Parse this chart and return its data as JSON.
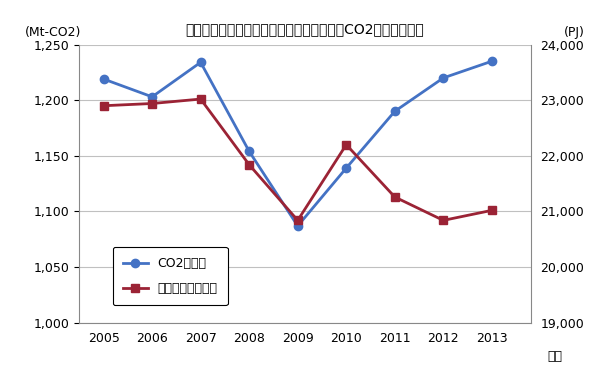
{
  "title": "一次エネルギー国内供給とエネルギー起源CO2排出量の推移",
  "years": [
    2005,
    2006,
    2007,
    2008,
    2009,
    2010,
    2011,
    2012,
    2013
  ],
  "co2": [
    1219,
    1203,
    1234,
    1154,
    1087,
    1139,
    1190,
    1220,
    1235
  ],
  "energy_left": [
    1195,
    1197,
    1201,
    1142,
    1092,
    1160,
    1113,
    1092,
    1101
  ],
  "co2_color": "#4472C4",
  "energy_color": "#9B2335",
  "ylabel_left": "(Mt-CO2)",
  "ylabel_right": "(PJ)",
  "xlabel": "年度",
  "legend_co2": "CO2排出量",
  "legend_energy": "一次エネ国内供給",
  "ylim_left": [
    1000,
    1250
  ],
  "ylim_right": [
    19000,
    24000
  ],
  "yticks_left": [
    1000,
    1050,
    1100,
    1150,
    1200,
    1250
  ],
  "yticks_right": [
    19000,
    20000,
    21000,
    22000,
    23000,
    24000
  ],
  "background_color": "#ffffff",
  "grid_color": "#c0c0c0"
}
